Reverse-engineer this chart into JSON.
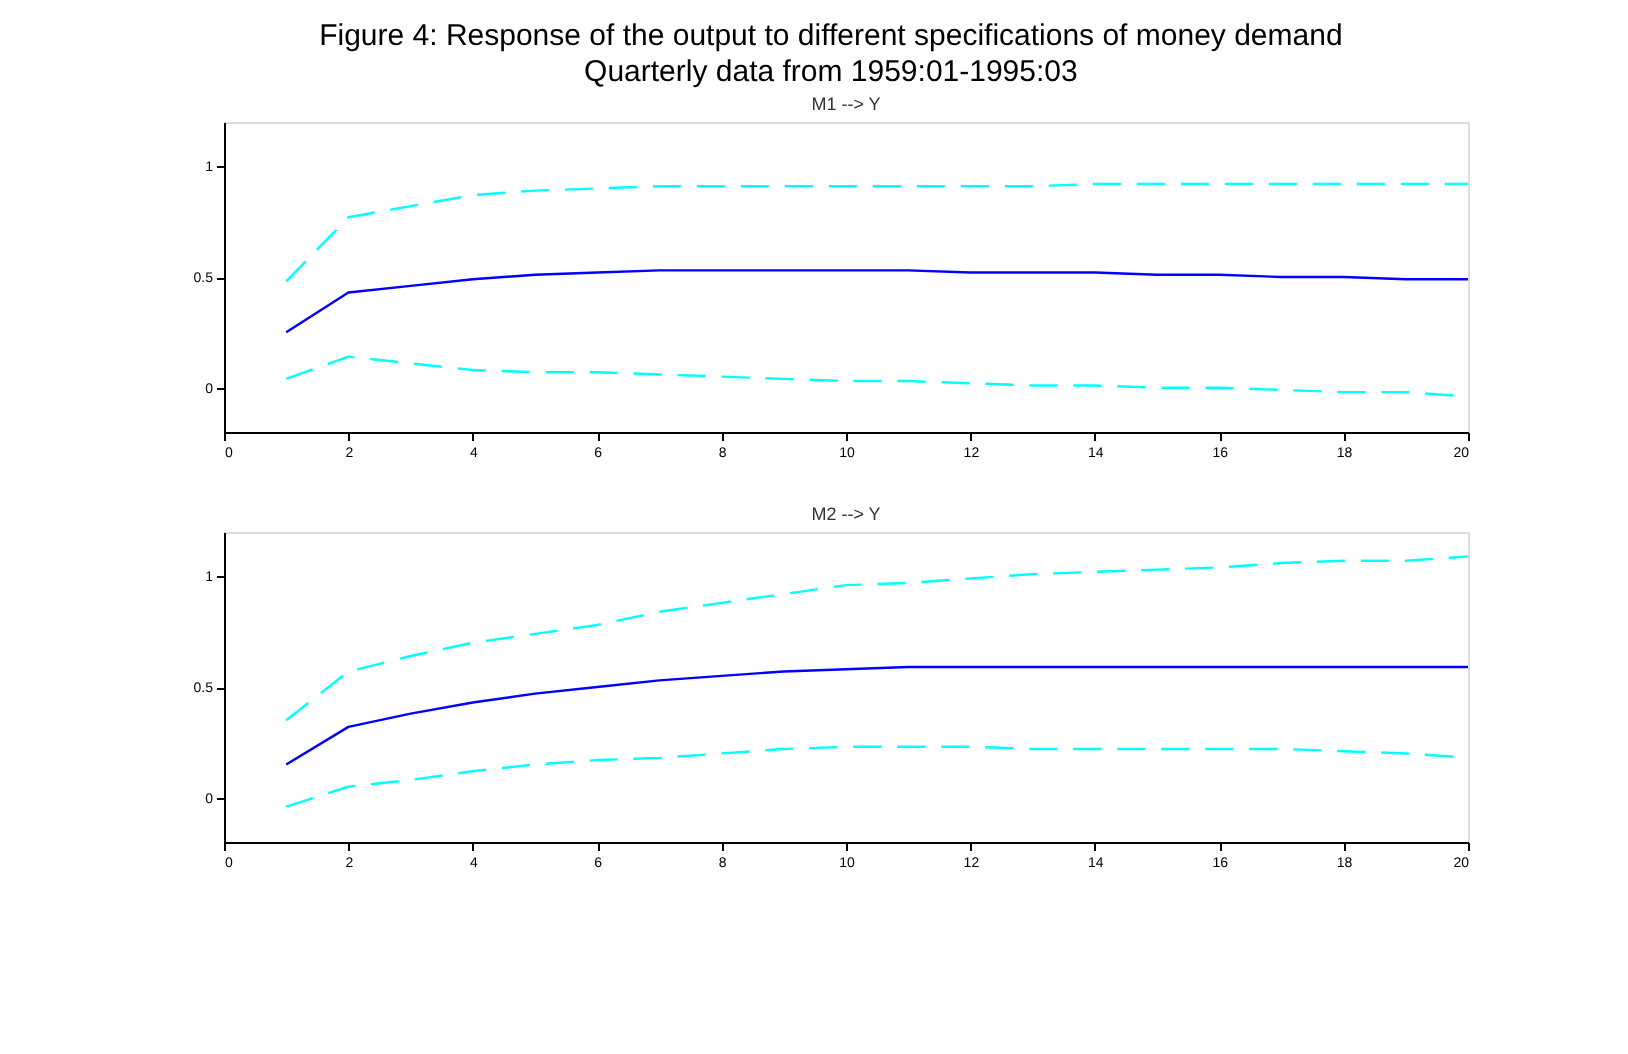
{
  "chart_data": [
    {
      "type": "line",
      "title": "M1 --> Y",
      "annotations": [
        "Figure 4: Response of the output to different specifications of money demand",
        "Quarterly data from 1959:01-1995:03"
      ],
      "x": [
        1,
        2,
        3,
        4,
        5,
        6,
        7,
        8,
        9,
        10,
        11,
        12,
        13,
        14,
        15,
        16,
        17,
        18,
        19,
        20
      ],
      "xlim": [
        0,
        20
      ],
      "xticks": [
        0,
        2,
        4,
        6,
        8,
        10,
        12,
        14,
        16,
        18,
        20
      ],
      "ylim": [
        -0.2,
        1.2
      ],
      "yticks": [
        0,
        0.5,
        1
      ],
      "grid": false,
      "legend": false,
      "series": [
        {
          "color": "#00ffff",
          "line_style": "dashed",
          "values": [
            0.48,
            0.77,
            0.82,
            0.87,
            0.89,
            0.9,
            0.91,
            0.91,
            0.91,
            0.91,
            0.91,
            0.91,
            0.91,
            0.92,
            0.92,
            0.92,
            0.92,
            0.92,
            0.92,
            0.92
          ]
        },
        {
          "color": "#0000ff",
          "line_style": "solid",
          "values": [
            0.25,
            0.43,
            0.46,
            0.49,
            0.51,
            0.52,
            0.53,
            0.53,
            0.53,
            0.53,
            0.53,
            0.52,
            0.52,
            0.52,
            0.51,
            0.51,
            0.5,
            0.5,
            0.49,
            0.49
          ]
        },
        {
          "color": "#00ffff",
          "line_style": "dashed",
          "values": [
            0.04,
            0.14,
            0.11,
            0.08,
            0.07,
            0.07,
            0.06,
            0.05,
            0.04,
            0.03,
            0.03,
            0.02,
            0.01,
            0.01,
            0.0,
            0.0,
            -0.01,
            -0.02,
            -0.02,
            -0.04
          ]
        }
      ]
    },
    {
      "type": "line",
      "title": "M2 --> Y",
      "x": [
        1,
        2,
        3,
        4,
        5,
        6,
        7,
        8,
        9,
        10,
        11,
        12,
        13,
        14,
        15,
        16,
        17,
        18,
        19,
        20
      ],
      "xlim": [
        0,
        20
      ],
      "xticks": [
        0,
        2,
        4,
        6,
        8,
        10,
        12,
        14,
        16,
        18,
        20
      ],
      "ylim": [
        -0.2,
        1.2
      ],
      "yticks": [
        0,
        0.5,
        1
      ],
      "grid": false,
      "legend": false,
      "series": [
        {
          "color": "#00ffff",
          "line_style": "dashed",
          "values": [
            0.35,
            0.57,
            0.64,
            0.7,
            0.74,
            0.78,
            0.84,
            0.88,
            0.92,
            0.96,
            0.97,
            0.99,
            1.01,
            1.02,
            1.03,
            1.04,
            1.06,
            1.07,
            1.07,
            1.09
          ]
        },
        {
          "color": "#0000ff",
          "line_style": "solid",
          "values": [
            0.15,
            0.32,
            0.38,
            0.43,
            0.47,
            0.5,
            0.53,
            0.55,
            0.57,
            0.58,
            0.59,
            0.59,
            0.59,
            0.59,
            0.59,
            0.59,
            0.59,
            0.59,
            0.59,
            0.59
          ]
        },
        {
          "color": "#00ffff",
          "line_style": "dashed",
          "values": [
            -0.04,
            0.05,
            0.08,
            0.12,
            0.15,
            0.17,
            0.18,
            0.2,
            0.22,
            0.23,
            0.23,
            0.23,
            0.22,
            0.22,
            0.22,
            0.22,
            0.22,
            0.21,
            0.2,
            0.18
          ]
        }
      ]
    }
  ]
}
